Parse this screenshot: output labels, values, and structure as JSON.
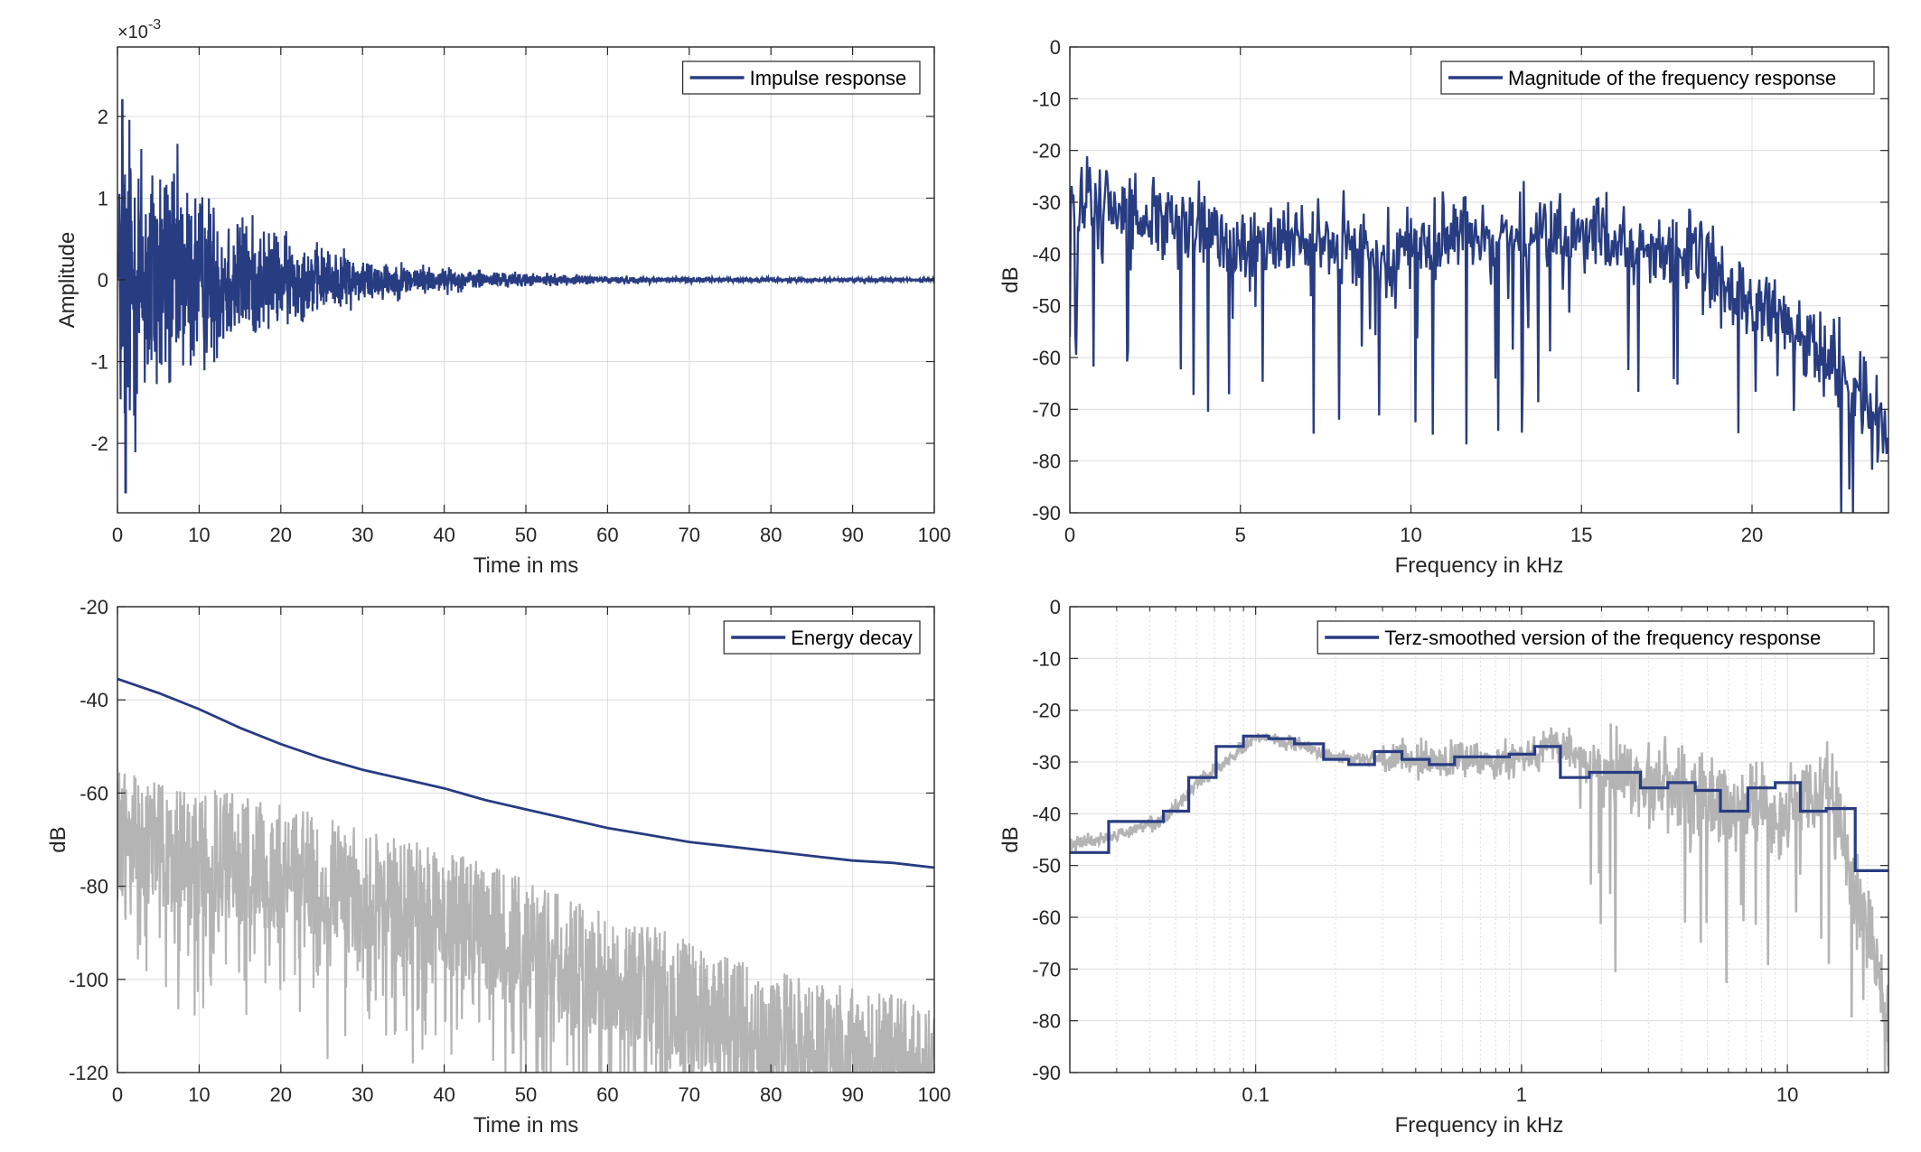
{
  "colors": {
    "series": "#283c82",
    "gray": "#b4b4b4",
    "axis": "#262626",
    "grid": "#dcdcdc"
  },
  "chart_data": [
    {
      "type": "line",
      "name": "impulse",
      "xlabel": "Time in ms",
      "ylabel": "Amplitude",
      "exponent": "×10",
      "exponent_power": "-3",
      "xlim": [
        0,
        100
      ],
      "ylim": [
        -2.85,
        2.85
      ],
      "xticks": [
        0,
        10,
        20,
        30,
        40,
        50,
        60,
        70,
        80,
        90,
        100
      ],
      "yticks": [
        -2,
        -1,
        0,
        1,
        2
      ],
      "grid": true,
      "legend": "top-right",
      "series": [
        {
          "name": "Impulse response",
          "color": "#283c82",
          "envelope": {
            "peak": 2.5,
            "decay_ms": 14,
            "floor": 0.02
          },
          "note_values": "oscillating signal, max ~2.2, min ~-2.6 near t=1ms"
        }
      ]
    },
    {
      "type": "line",
      "name": "magnitude",
      "xlabel": "Frequency in kHz",
      "ylabel": "dB",
      "xlim": [
        0,
        24
      ],
      "ylim": [
        -90,
        0
      ],
      "xticks": [
        0,
        5,
        10,
        15,
        20
      ],
      "yticks": [
        0,
        -10,
        -20,
        -30,
        -40,
        -50,
        -60,
        -70,
        -80,
        -90
      ],
      "grid": true,
      "legend": "top-right",
      "series": [
        {
          "name": "Magnitude of the frequency response",
          "color": "#283c82",
          "trend_x": [
            0,
            1,
            3,
            6,
            9,
            12,
            15,
            18,
            20,
            22,
            24
          ],
          "trend_y": [
            -32,
            -30,
            -35,
            -38,
            -40,
            -36,
            -37,
            -40,
            -50,
            -58,
            -75
          ]
        }
      ]
    },
    {
      "type": "line",
      "name": "energy",
      "xlabel": "Time in ms",
      "ylabel": "dB",
      "xlim": [
        0,
        100
      ],
      "ylim": [
        -120,
        -20
      ],
      "xticks": [
        0,
        10,
        20,
        30,
        40,
        50,
        60,
        70,
        80,
        90,
        100
      ],
      "yticks": [
        -20,
        -40,
        -60,
        -80,
        -100,
        -120
      ],
      "grid": true,
      "legend": "top-right",
      "series": [
        {
          "name": "Energy decay",
          "color": "#283c82",
          "x": [
            0,
            5,
            10,
            15,
            20,
            25,
            30,
            35,
            40,
            45,
            50,
            55,
            60,
            65,
            70,
            75,
            80,
            85,
            90,
            95,
            100
          ],
          "y": [
            -35.5,
            -38.5,
            -42,
            -46,
            -49.5,
            -52.5,
            -55,
            -57,
            -59,
            -61.5,
            -63.5,
            -65.5,
            -67.5,
            -69,
            -70.5,
            -71.5,
            -72.5,
            -73.5,
            -74.5,
            -75,
            -76
          ]
        },
        {
          "color": "#b4b4b4",
          "upper_x": [
            0,
            20,
            40,
            60,
            80,
            100
          ],
          "upper_y": [
            -55,
            -62,
            -72,
            -85,
            -98,
            -105
          ]
        }
      ]
    },
    {
      "type": "line",
      "name": "terz",
      "xlabel": "Frequency in kHz",
      "ylabel": "dB",
      "xscale": "log",
      "xlim": [
        0.02,
        24
      ],
      "ylim": [
        -90,
        0
      ],
      "xticks": [
        0.1,
        1,
        10
      ],
      "xticklabels": [
        "0.1",
        "1",
        "10"
      ],
      "yticks": [
        0,
        -10,
        -20,
        -30,
        -40,
        -50,
        -60,
        -70,
        -80,
        -90
      ],
      "grid": true,
      "legend": "top-right",
      "series": [
        {
          "name": "Terz-smoothed version of the frequency response",
          "color": "#283c82",
          "step_edges": [
            0.02,
            0.028,
            0.045,
            0.056,
            0.071,
            0.09,
            0.112,
            0.14,
            0.18,
            0.224,
            0.28,
            0.355,
            0.45,
            0.56,
            0.71,
            0.9,
            1.12,
            1.4,
            1.8,
            2.24,
            2.8,
            3.55,
            4.5,
            5.6,
            7.1,
            9,
            11.2,
            14,
            18,
            24
          ],
          "step_values": [
            -47.5,
            -41.5,
            -39.5,
            -33,
            -27,
            -25,
            -25.5,
            -26.5,
            -29.5,
            -30.5,
            -28,
            -29.5,
            -30.5,
            -29,
            -29,
            -28.5,
            -27,
            -33,
            -32,
            -32,
            -35,
            -34,
            -35.5,
            -39.5,
            -35,
            -34,
            -39.5,
            -39,
            -51
          ]
        },
        {
          "color": "#b4b4b4",
          "trend_x": [
            0.02,
            0.03,
            0.045,
            0.06,
            0.1,
            0.2,
            0.5,
            1,
            1.3,
            2,
            5,
            10,
            14,
            18,
            24
          ],
          "trend_y": [
            -46,
            -44,
            -41,
            -34,
            -25,
            -29,
            -30,
            -29,
            -26,
            -32,
            -37,
            -40,
            -35,
            -55,
            -78
          ]
        }
      ]
    }
  ]
}
